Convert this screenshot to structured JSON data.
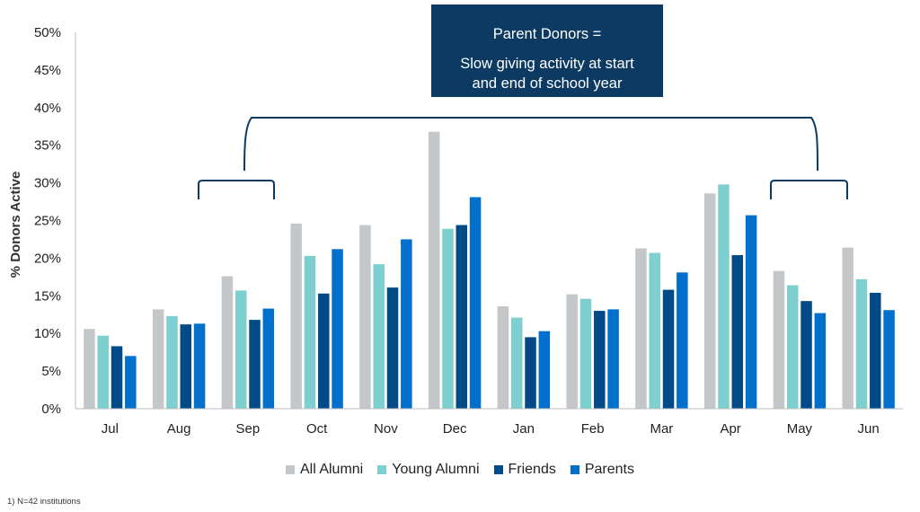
{
  "chart_data": {
    "type": "bar",
    "ylabel": "% Donors Active",
    "ylim": [
      0,
      50
    ],
    "yticks": [
      "0%",
      "5%",
      "10%",
      "15%",
      "20%",
      "25%",
      "30%",
      "35%",
      "40%",
      "45%",
      "50%"
    ],
    "categories": [
      "Jul",
      "Aug",
      "Sep",
      "Oct",
      "Nov",
      "Dec",
      "Jan",
      "Feb",
      "Mar",
      "Apr",
      "May",
      "Jun"
    ],
    "series": [
      {
        "name": "All Alumni",
        "color": "#c4c7ca",
        "values": [
          10.6,
          13.2,
          17.6,
          24.6,
          24.4,
          36.8,
          13.6,
          15.2,
          21.3,
          28.6,
          18.3,
          21.4
        ]
      },
      {
        "name": "Young Alumni",
        "color": "#7ecfcf",
        "values": [
          9.7,
          12.3,
          15.7,
          20.3,
          19.2,
          23.9,
          12.1,
          14.6,
          20.7,
          29.8,
          16.4,
          17.2
        ]
      },
      {
        "name": "Friends",
        "color": "#004b87",
        "values": [
          8.3,
          11.2,
          11.8,
          15.3,
          16.1,
          24.4,
          9.5,
          13.0,
          15.8,
          20.4,
          14.3,
          15.4
        ]
      },
      {
        "name": "Parents",
        "color": "#0070cc",
        "values": [
          7.0,
          11.3,
          13.3,
          21.2,
          22.5,
          28.1,
          10.3,
          13.2,
          18.1,
          25.7,
          12.7,
          13.1
        ]
      }
    ],
    "grid": false,
    "legend": "bottom",
    "annotation": {
      "line1": "Parent Donors =",
      "line2": "Slow giving activity at start",
      "line3": "and end of school year"
    }
  },
  "footnote": "1)  N=42 institutions",
  "colors": {
    "callout_bg": "#0d3a63",
    "bracket": "#0d3a63"
  }
}
